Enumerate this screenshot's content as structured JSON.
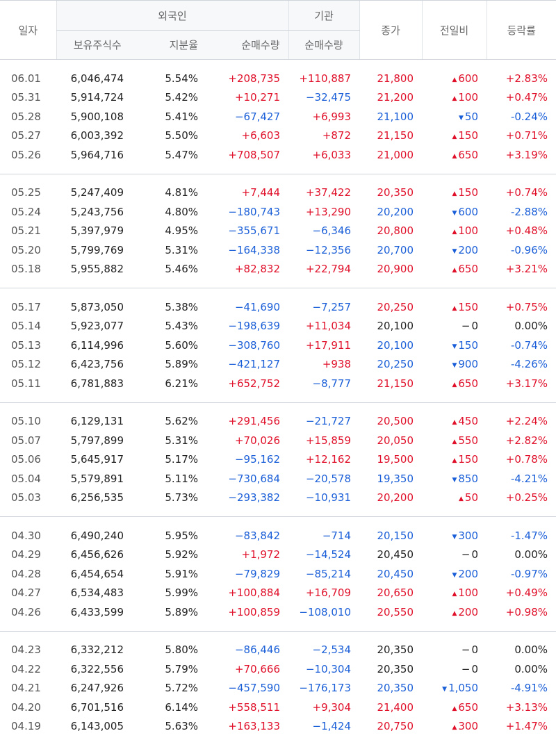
{
  "headers": {
    "date": "일자",
    "foreign": "외국인",
    "institution": "기관",
    "holdings": "보유주식수",
    "ratio": "지분율",
    "foreign_net": "순매수량",
    "inst_net": "순매수량",
    "close": "종가",
    "change": "전일비",
    "rate": "등락률"
  },
  "groups": [
    [
      {
        "date": "06.01",
        "shares": "6,046,474",
        "ratio": "5.54%",
        "fnet": "+208,735",
        "inet": "+110,887",
        "close": "21,800",
        "chg": "600",
        "rate": "+2.83%",
        "dir": "up"
      },
      {
        "date": "05.31",
        "shares": "5,914,724",
        "ratio": "5.42%",
        "fnet": "+10,271",
        "inet": "−32,475",
        "close": "21,200",
        "chg": "100",
        "rate": "+0.47%",
        "dir": "up"
      },
      {
        "date": "05.28",
        "shares": "5,900,108",
        "ratio": "5.41%",
        "fnet": "−67,427",
        "inet": "+6,993",
        "close": "21,100",
        "chg": "50",
        "rate": "-0.24%",
        "dir": "down"
      },
      {
        "date": "05.27",
        "shares": "6,003,392",
        "ratio": "5.50%",
        "fnet": "+6,603",
        "inet": "+872",
        "close": "21,150",
        "chg": "150",
        "rate": "+0.71%",
        "dir": "up"
      },
      {
        "date": "05.26",
        "shares": "5,964,716",
        "ratio": "5.47%",
        "fnet": "+708,507",
        "inet": "+6,033",
        "close": "21,000",
        "chg": "650",
        "rate": "+3.19%",
        "dir": "up"
      }
    ],
    [
      {
        "date": "05.25",
        "shares": "5,247,409",
        "ratio": "4.81%",
        "fnet": "+7,444",
        "inet": "+37,422",
        "close": "20,350",
        "chg": "150",
        "rate": "+0.74%",
        "dir": "up"
      },
      {
        "date": "05.24",
        "shares": "5,243,756",
        "ratio": "4.80%",
        "fnet": "−180,743",
        "inet": "+13,290",
        "close": "20,200",
        "chg": "600",
        "rate": "-2.88%",
        "dir": "down"
      },
      {
        "date": "05.21",
        "shares": "5,397,979",
        "ratio": "4.95%",
        "fnet": "−355,671",
        "inet": "−6,346",
        "close": "20,800",
        "chg": "100",
        "rate": "+0.48%",
        "dir": "up"
      },
      {
        "date": "05.20",
        "shares": "5,799,769",
        "ratio": "5.31%",
        "fnet": "−164,338",
        "inet": "−12,356",
        "close": "20,700",
        "chg": "200",
        "rate": "-0.96%",
        "dir": "down"
      },
      {
        "date": "05.18",
        "shares": "5,955,882",
        "ratio": "5.46%",
        "fnet": "+82,832",
        "inet": "+22,794",
        "close": "20,900",
        "chg": "650",
        "rate": "+3.21%",
        "dir": "up"
      }
    ],
    [
      {
        "date": "05.17",
        "shares": "5,873,050",
        "ratio": "5.38%",
        "fnet": "−41,690",
        "inet": "−7,257",
        "close": "20,250",
        "chg": "150",
        "rate": "+0.75%",
        "dir": "up"
      },
      {
        "date": "05.14",
        "shares": "5,923,077",
        "ratio": "5.43%",
        "fnet": "−198,639",
        "inet": "+11,034",
        "close": "20,100",
        "chg": "0",
        "rate": "0.00%",
        "dir": "flat"
      },
      {
        "date": "05.13",
        "shares": "6,114,996",
        "ratio": "5.60%",
        "fnet": "−308,760",
        "inet": "+17,911",
        "close": "20,100",
        "chg": "150",
        "rate": "-0.74%",
        "dir": "down"
      },
      {
        "date": "05.12",
        "shares": "6,423,756",
        "ratio": "5.89%",
        "fnet": "−421,127",
        "inet": "+938",
        "close": "20,250",
        "chg": "900",
        "rate": "-4.26%",
        "dir": "down"
      },
      {
        "date": "05.11",
        "shares": "6,781,883",
        "ratio": "6.21%",
        "fnet": "+652,752",
        "inet": "−8,777",
        "close": "21,150",
        "chg": "650",
        "rate": "+3.17%",
        "dir": "up"
      }
    ],
    [
      {
        "date": "05.10",
        "shares": "6,129,131",
        "ratio": "5.62%",
        "fnet": "+291,456",
        "inet": "−21,727",
        "close": "20,500",
        "chg": "450",
        "rate": "+2.24%",
        "dir": "up"
      },
      {
        "date": "05.07",
        "shares": "5,797,899",
        "ratio": "5.31%",
        "fnet": "+70,026",
        "inet": "+15,859",
        "close": "20,050",
        "chg": "550",
        "rate": "+2.82%",
        "dir": "up"
      },
      {
        "date": "05.06",
        "shares": "5,645,917",
        "ratio": "5.17%",
        "fnet": "−95,162",
        "inet": "+12,162",
        "close": "19,500",
        "chg": "150",
        "rate": "+0.78%",
        "dir": "up"
      },
      {
        "date": "05.04",
        "shares": "5,579,891",
        "ratio": "5.11%",
        "fnet": "−730,684",
        "inet": "−20,578",
        "close": "19,350",
        "chg": "850",
        "rate": "-4.21%",
        "dir": "down"
      },
      {
        "date": "05.03",
        "shares": "6,256,535",
        "ratio": "5.73%",
        "fnet": "−293,382",
        "inet": "−10,931",
        "close": "20,200",
        "chg": "50",
        "rate": "+0.25%",
        "dir": "up"
      }
    ],
    [
      {
        "date": "04.30",
        "shares": "6,490,240",
        "ratio": "5.95%",
        "fnet": "−83,842",
        "inet": "−714",
        "close": "20,150",
        "chg": "300",
        "rate": "-1.47%",
        "dir": "down"
      },
      {
        "date": "04.29",
        "shares": "6,456,626",
        "ratio": "5.92%",
        "fnet": "+1,972",
        "inet": "−14,524",
        "close": "20,450",
        "chg": "0",
        "rate": "0.00%",
        "dir": "flat"
      },
      {
        "date": "04.28",
        "shares": "6,454,654",
        "ratio": "5.91%",
        "fnet": "−79,829",
        "inet": "−85,214",
        "close": "20,450",
        "chg": "200",
        "rate": "-0.97%",
        "dir": "down"
      },
      {
        "date": "04.27",
        "shares": "6,534,483",
        "ratio": "5.99%",
        "fnet": "+100,884",
        "inet": "+16,709",
        "close": "20,650",
        "chg": "100",
        "rate": "+0.49%",
        "dir": "up"
      },
      {
        "date": "04.26",
        "shares": "6,433,599",
        "ratio": "5.89%",
        "fnet": "+100,859",
        "inet": "−108,010",
        "close": "20,550",
        "chg": "200",
        "rate": "+0.98%",
        "dir": "up"
      }
    ],
    [
      {
        "date": "04.23",
        "shares": "6,332,212",
        "ratio": "5.80%",
        "fnet": "−86,446",
        "inet": "−2,534",
        "close": "20,350",
        "chg": "0",
        "rate": "0.00%",
        "dir": "flat"
      },
      {
        "date": "04.22",
        "shares": "6,322,556",
        "ratio": "5.79%",
        "fnet": "+70,666",
        "inet": "−10,304",
        "close": "20,350",
        "chg": "0",
        "rate": "0.00%",
        "dir": "flat"
      },
      {
        "date": "04.21",
        "shares": "6,247,926",
        "ratio": "5.72%",
        "fnet": "−457,590",
        "inet": "−176,173",
        "close": "20,350",
        "chg": "1,050",
        "rate": "-4.91%",
        "dir": "down"
      },
      {
        "date": "04.20",
        "shares": "6,701,516",
        "ratio": "6.14%",
        "fnet": "+558,511",
        "inet": "+9,304",
        "close": "21,400",
        "chg": "650",
        "rate": "+3.13%",
        "dir": "up"
      },
      {
        "date": "04.19",
        "shares": "6,143,005",
        "ratio": "5.63%",
        "fnet": "+163,133",
        "inet": "−1,424",
        "close": "20,750",
        "chg": "300",
        "rate": "+1.47%",
        "dir": "up"
      }
    ]
  ]
}
